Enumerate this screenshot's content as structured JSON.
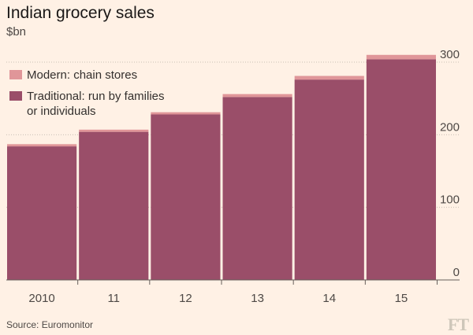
{
  "header": {
    "title": "Indian grocery sales",
    "subtitle": "$bn"
  },
  "colors": {
    "background": "#fff1e5",
    "modern": "#e09699",
    "traditional": "#9a4e69",
    "gridline": "#c9bfb4",
    "baseline": "#66605c",
    "text": "#4d4845"
  },
  "chart_data": {
    "type": "bar",
    "stacked": true,
    "categories": [
      "2010",
      "11",
      "12",
      "13",
      "14",
      "15"
    ],
    "series": [
      {
        "name": "Traditional: run by families or individuals",
        "values": [
          184,
          204,
          228,
          252,
          276,
          304
        ],
        "color": "#9a4e69"
      },
      {
        "name": "Modern: chain stores",
        "values": [
          3,
          3,
          3,
          4,
          5,
          6
        ],
        "color": "#e09699"
      }
    ],
    "ylim": [
      0,
      300
    ],
    "yticks": [
      0,
      100,
      200,
      300
    ],
    "grid": true,
    "legend_position": "top-left",
    "legend": [
      {
        "label": "Modern: chain stores",
        "color": "#e09699"
      },
      {
        "label": "Traditional: run by families",
        "label_line2": "or individuals",
        "color": "#9a4e69"
      }
    ],
    "source": "Source: Euromonitor"
  },
  "branding": {
    "logo": "FT"
  }
}
